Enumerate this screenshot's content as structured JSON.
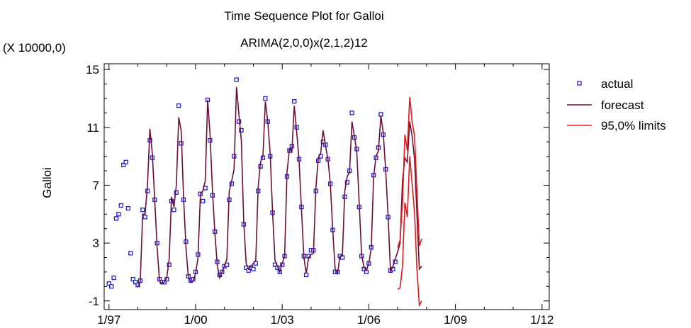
{
  "chart_data": {
    "type": "line",
    "title": "Time Sequence Plot for Galloi",
    "subtitle": "ARIMA(2,0,0)x(2,1,2)12",
    "ylabel": "Galloi",
    "y_multiplier_label": "(X 10000,0)",
    "xlabel": "",
    "x_ticks": [
      "1/97",
      "1/00",
      "1/03",
      "1/06",
      "1/09",
      "1/12"
    ],
    "y_ticks": [
      "-1",
      "3",
      "7",
      "11",
      "15"
    ],
    "xlim": [
      "1996-11",
      "2012-04"
    ],
    "ylim": [
      -1.6,
      15.4
    ],
    "legend_position": "right",
    "colors": {
      "actual": "#1f1fd6",
      "forecast": "#6b0f3a",
      "limits": "#e81818"
    },
    "x_start": "1997-01",
    "series": [
      {
        "name": "actual",
        "style": "points",
        "values": [
          0.2,
          0.0,
          0.6,
          4.7,
          5.0,
          5.6,
          8.4,
          8.6,
          5.4,
          2.3,
          0.5,
          0.3,
          0.1,
          0.4,
          5.3,
          4.8,
          6.6,
          10.1,
          8.9,
          6.0,
          3.0,
          0.5,
          0.3,
          0.3,
          0.5,
          1.5,
          5.9,
          5.3,
          6.5,
          12.5,
          9.9,
          6.0,
          3.1,
          0.7,
          0.4,
          0.5,
          1.0,
          2.2,
          6.4,
          5.9,
          6.8,
          12.9,
          10.1,
          6.3,
          3.8,
          1.7,
          0.8,
          1.0,
          1.4,
          1.5,
          6.0,
          7.1,
          9.0,
          14.3,
          11.4,
          10.8,
          4.3,
          1.3,
          1.1,
          1.3,
          1.2,
          1.6,
          6.6,
          8.3,
          8.9,
          13.0,
          11.4,
          9.0,
          5.1,
          1.5,
          1.3,
          1.0,
          1.5,
          2.1,
          7.6,
          9.4,
          9.7,
          12.8,
          11.0,
          8.8,
          5.5,
          2.1,
          0.8,
          2.1,
          2.5,
          2.5,
          6.6,
          8.7,
          9.0,
          10.0,
          9.8,
          8.8,
          7.1,
          3.9,
          1.0,
          1.0,
          2.1,
          2.0,
          6.2,
          7.2,
          8.0,
          12.0,
          10.3,
          9.5,
          5.5,
          2.1,
          1.2,
          1.0,
          1.6,
          2.7,
          7.7,
          8.9,
          9.6,
          11.9,
          10.5,
          8.1,
          4.8,
          1.1,
          1.2,
          1.7
        ]
      },
      {
        "name": "forecast",
        "style": "line",
        "values": [
          null,
          null,
          null,
          null,
          null,
          null,
          null,
          null,
          null,
          null,
          null,
          null,
          0.0,
          0.3,
          5.0,
          5.0,
          7.0,
          10.9,
          9.2,
          6.0,
          2.7,
          0.4,
          0.2,
          0.3,
          0.6,
          1.9,
          6.2,
          5.5,
          7.0,
          11.7,
          10.8,
          6.2,
          2.7,
          0.6,
          0.3,
          0.4,
          0.9,
          2.0,
          6.4,
          6.6,
          7.3,
          12.9,
          10.5,
          6.6,
          3.7,
          1.5,
          0.6,
          1.0,
          1.4,
          1.9,
          6.6,
          7.3,
          8.1,
          13.8,
          11.9,
          10.1,
          4.5,
          1.6,
          1.2,
          1.4,
          1.6,
          1.8,
          6.9,
          8.6,
          9.0,
          12.8,
          11.4,
          9.2,
          5.1,
          1.8,
          1.4,
          1.0,
          1.6,
          2.1,
          7.9,
          9.5,
          9.3,
          12.5,
          10.7,
          8.7,
          5.3,
          2.0,
          0.9,
          2.0,
          2.2,
          2.3,
          6.8,
          8.9,
          9.2,
          10.8,
          9.7,
          8.8,
          7.1,
          3.9,
          1.2,
          0.9,
          2.1,
          2.1,
          6.6,
          7.6,
          7.9,
          11.4,
          10.4,
          9.3,
          5.8,
          2.2,
          1.3,
          1.1,
          1.6,
          2.6,
          7.6,
          9.0,
          9.4,
          11.8,
          10.6,
          8.0,
          4.9,
          1.0,
          1.4,
          1.9,
          2.4,
          3.0,
          7.3,
          8.9,
          8.6,
          11.4,
          10.4,
          8.8,
          5.0,
          1.2,
          1.4
        ]
      },
      {
        "name": "95,0% limits",
        "style": "band",
        "upper": [
          2.7,
          3.2,
          5.8,
          10.5,
          9.4,
          13.1,
          11.4,
          10.4,
          6.6,
          2.8,
          3.3
        ],
        "lower": [
          -0.2,
          -0.1,
          1.4,
          5.8,
          4.8,
          9.0,
          7.1,
          5.1,
          1.2,
          -1.3,
          -1.0
        ]
      }
    ]
  }
}
